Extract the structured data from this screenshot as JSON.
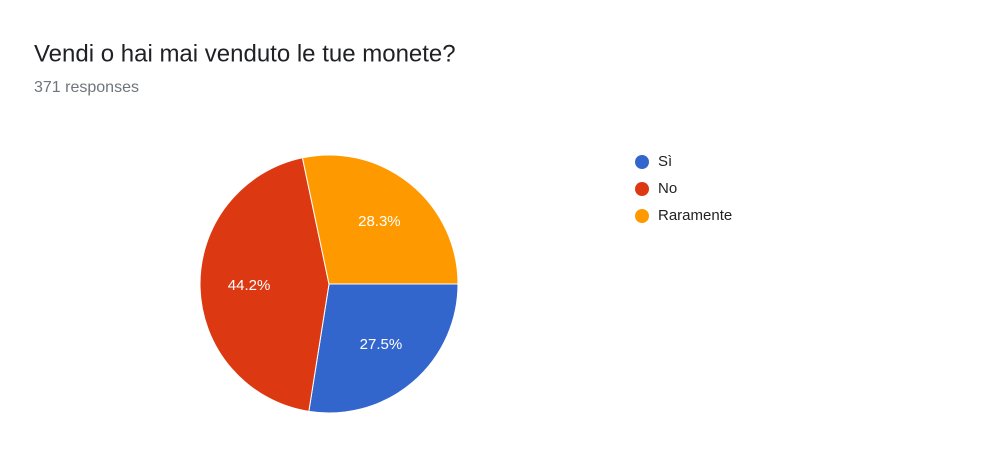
{
  "chart_data": {
    "type": "pie",
    "title": "Vendi o hai mai venduto le tue monete?",
    "subtitle": "371 responses",
    "categories": [
      "Sì",
      "No",
      "Raramente"
    ],
    "values": [
      27.5,
      44.2,
      28.3
    ],
    "value_labels": [
      "27.5%",
      "44.2%",
      "28.3%"
    ],
    "colors": [
      "#3366cc",
      "#dc3912",
      "#ff9900"
    ],
    "legend": "right"
  }
}
